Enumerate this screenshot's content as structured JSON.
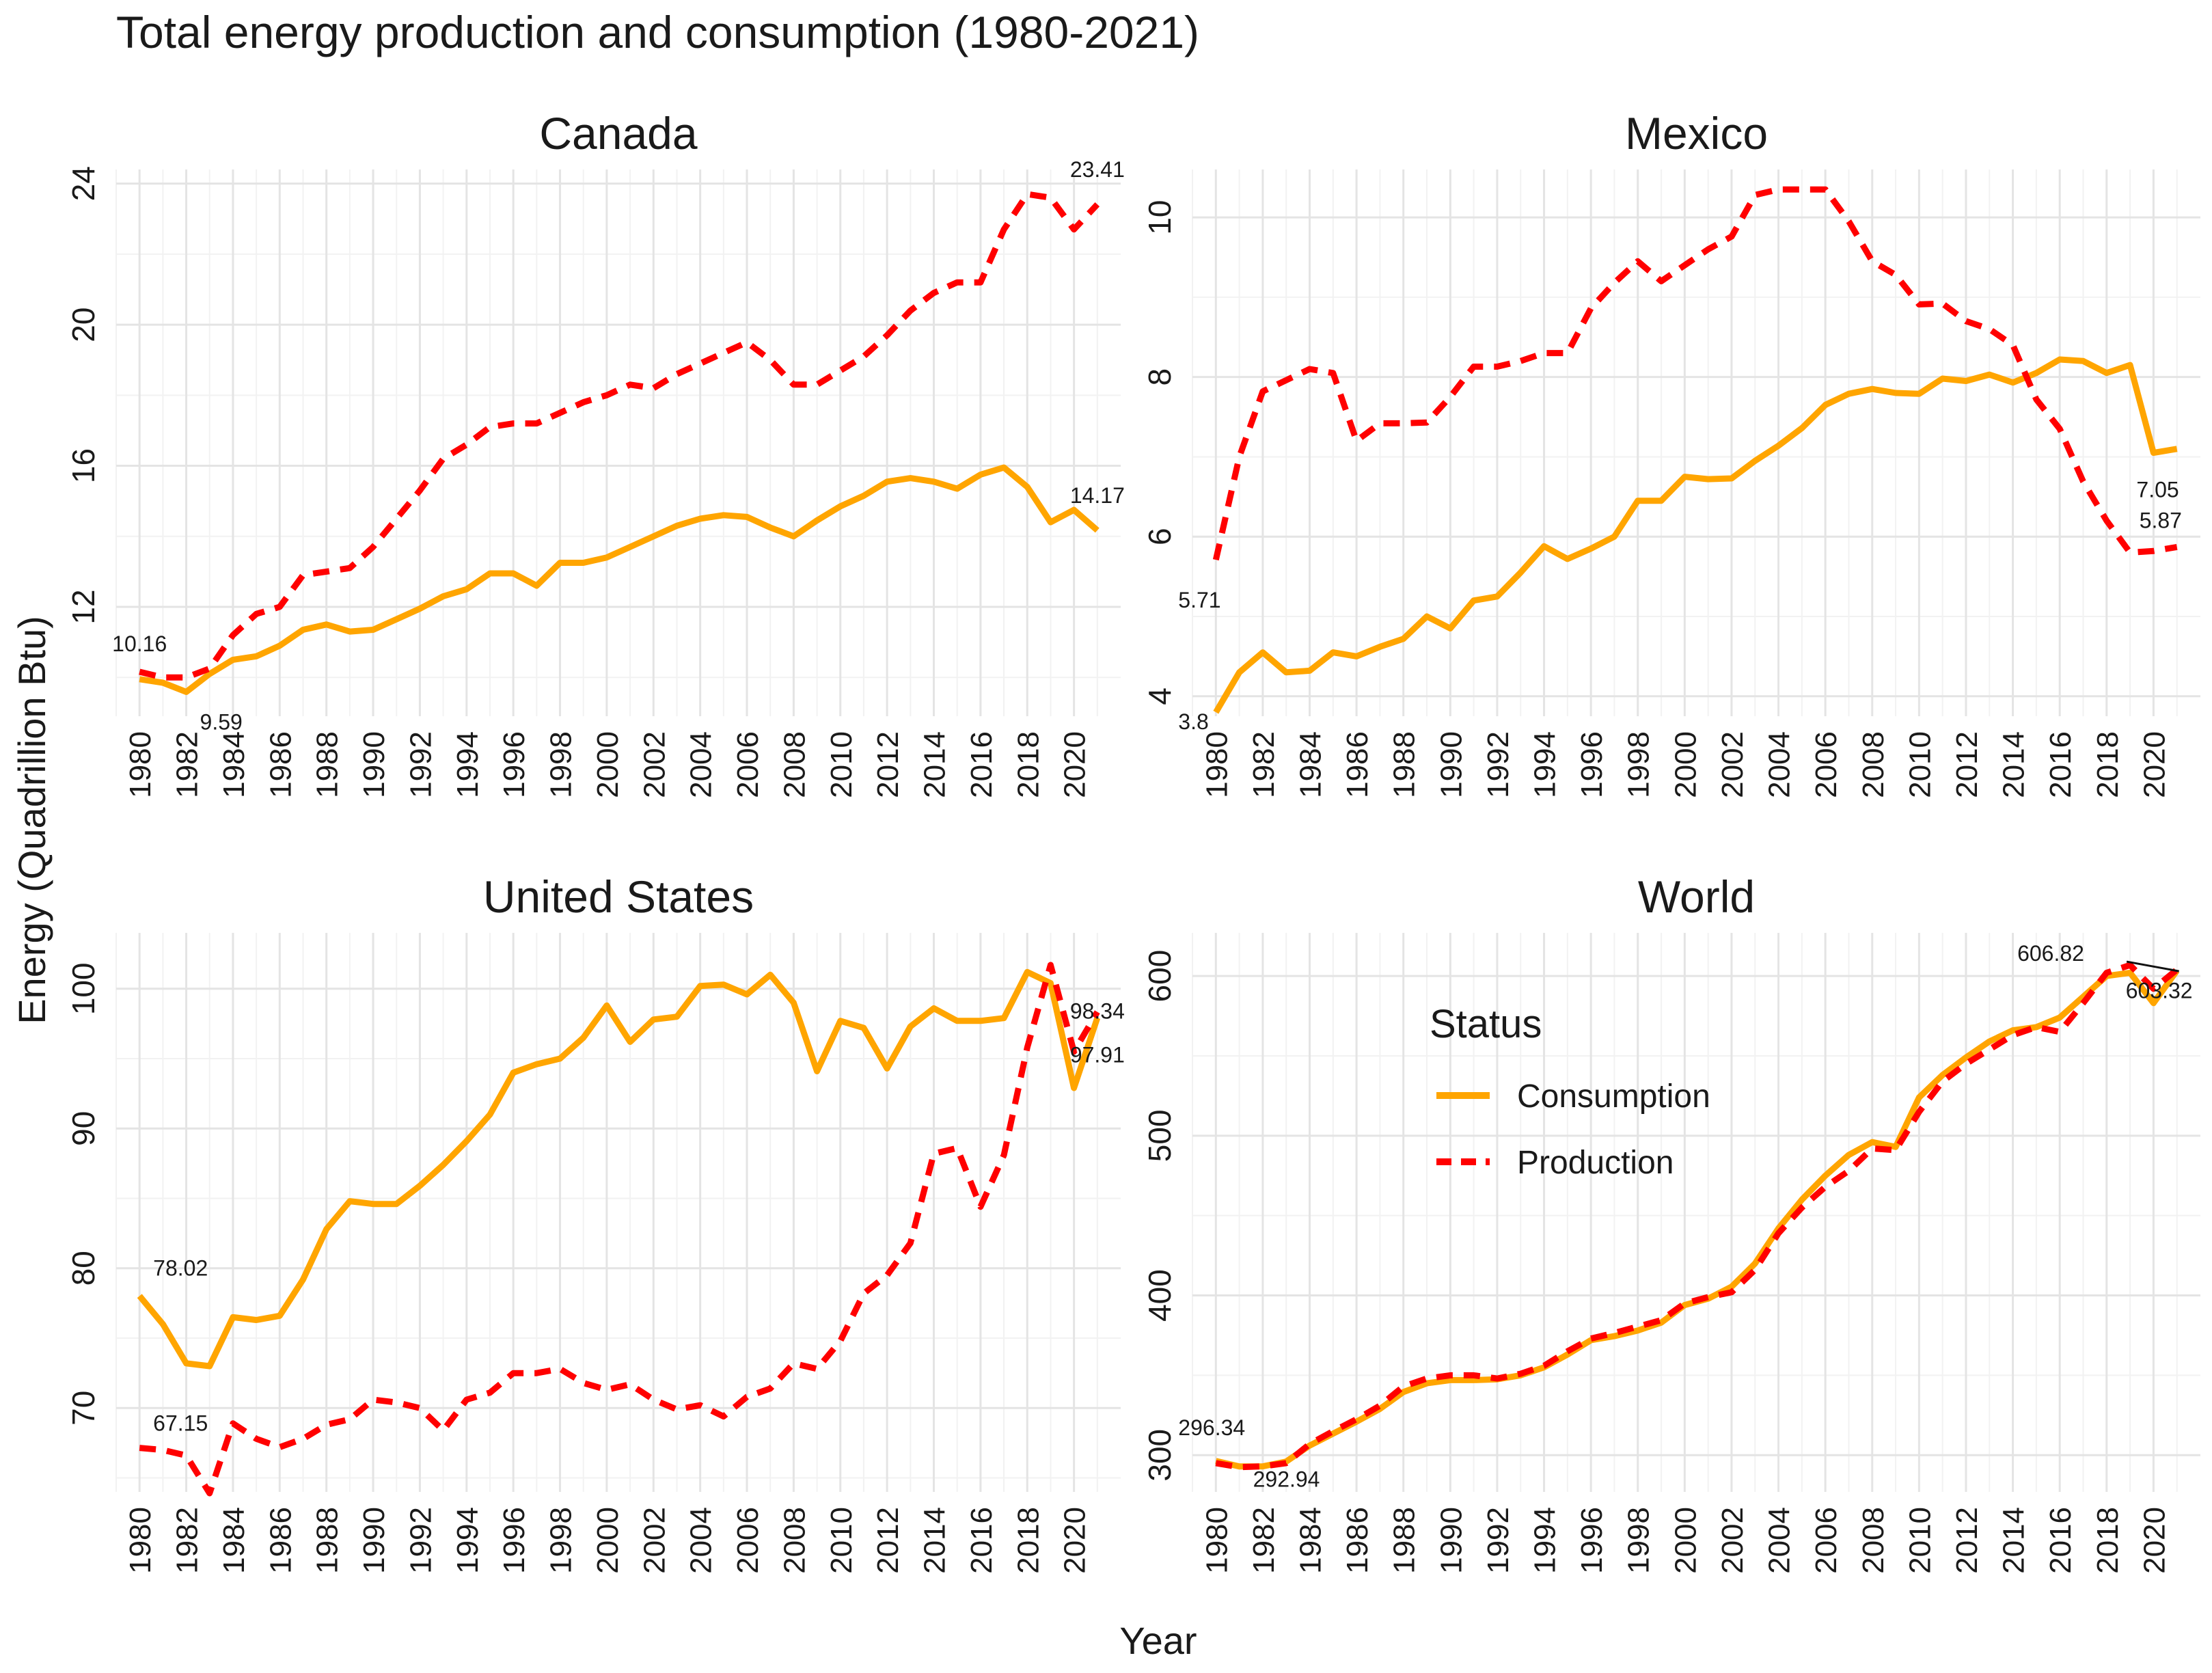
{
  "title": "Total energy production and consumption (1980-2021)",
  "xlabel": "Year",
  "ylabel": "Energy (Quadrillion Btu)",
  "legend": {
    "title": "Status",
    "position": "inside-world-panel-left",
    "items": [
      {
        "name": "Consumption",
        "color": "#FFA500",
        "dash": "solid"
      },
      {
        "name": "Production",
        "color": "#FF0000",
        "dash": "dashed"
      }
    ]
  },
  "chart_data": {
    "type": "line",
    "x_ticks": [
      "1980",
      "1982",
      "1984",
      "1986",
      "1988",
      "1990",
      "1992",
      "1994",
      "1996",
      "1998",
      "2000",
      "2002",
      "2004",
      "2006",
      "2008",
      "2010",
      "2012",
      "2014",
      "2016",
      "2018",
      "2020"
    ],
    "xlim": [
      1979,
      2022
    ],
    "panels": [
      {
        "name": "Canada",
        "ylim": [
          8.9,
          24.4
        ],
        "yticks": [
          12,
          16,
          20,
          24
        ],
        "x": [
          1980,
          1981,
          1982,
          1983,
          1984,
          1985,
          1986,
          1987,
          1988,
          1989,
          1990,
          1991,
          1992,
          1993,
          1994,
          1995,
          1996,
          1997,
          1998,
          1999,
          2000,
          2001,
          2002,
          2003,
          2004,
          2005,
          2006,
          2007,
          2008,
          2009,
          2010,
          2011,
          2012,
          2013,
          2014,
          2015,
          2016,
          2017,
          2018,
          2019,
          2020,
          2021
        ],
        "series": [
          {
            "name": "Consumption",
            "values": [
              9.95,
              9.85,
              9.59,
              10.1,
              10.5,
              10.6,
              10.9,
              11.35,
              11.5,
              11.3,
              11.35,
              11.65,
              11.95,
              12.3,
              12.5,
              12.95,
              12.95,
              12.6,
              13.25,
              13.25,
              13.4,
              13.7,
              14.0,
              14.3,
              14.5,
              14.6,
              14.55,
              14.25,
              14.0,
              14.45,
              14.85,
              15.15,
              15.55,
              15.65,
              15.55,
              15.35,
              15.75,
              15.95,
              15.4,
              14.4,
              14.75,
              14.17
            ]
          },
          {
            "name": "Production",
            "values": [
              10.16,
              10.0,
              10.0,
              10.25,
              11.2,
              11.8,
              12.0,
              12.9,
              13.0,
              13.1,
              13.7,
              14.5,
              15.3,
              16.2,
              16.6,
              17.1,
              17.2,
              17.2,
              17.5,
              17.8,
              18.0,
              18.3,
              18.2,
              18.6,
              18.9,
              19.2,
              19.5,
              19.0,
              18.3,
              18.3,
              18.7,
              19.1,
              19.7,
              20.4,
              20.9,
              21.2,
              21.2,
              22.7,
              23.7,
              23.6,
              22.7,
              23.41
            ]
          }
        ],
        "annotations": [
          {
            "text": "10.16",
            "x": 1980,
            "y": 10.16,
            "series": "Production"
          },
          {
            "text": "9.59",
            "x": 1982,
            "y": 9.59,
            "series": "Consumption"
          },
          {
            "text": "23.41",
            "x": 2021,
            "y": 23.41,
            "series": "Production"
          },
          {
            "text": "14.17",
            "x": 2021,
            "y": 14.17,
            "series": "Consumption"
          }
        ]
      },
      {
        "name": "Mexico",
        "ylim": [
          3.75,
          10.6
        ],
        "yticks": [
          4,
          6,
          8,
          10
        ],
        "x": [
          1980,
          1981,
          1982,
          1983,
          1984,
          1985,
          1986,
          1987,
          1988,
          1989,
          1990,
          1991,
          1992,
          1993,
          1994,
          1995,
          1996,
          1997,
          1998,
          1999,
          2000,
          2001,
          2002,
          2003,
          2004,
          2005,
          2006,
          2007,
          2008,
          2009,
          2010,
          2011,
          2012,
          2013,
          2014,
          2015,
          2016,
          2017,
          2018,
          2019,
          2020,
          2021
        ],
        "series": [
          {
            "name": "Consumption",
            "values": [
              3.8,
              4.3,
              4.55,
              4.3,
              4.32,
              4.55,
              4.5,
              4.62,
              4.72,
              5.0,
              4.85,
              5.2,
              5.25,
              5.55,
              5.88,
              5.72,
              5.85,
              6.0,
              6.45,
              6.45,
              6.75,
              6.72,
              6.73,
              6.95,
              7.14,
              7.36,
              7.65,
              7.79,
              7.85,
              7.8,
              7.79,
              7.98,
              7.95,
              8.03,
              7.93,
              8.05,
              8.22,
              8.2,
              8.05,
              8.15,
              7.05,
              7.1
            ]
          },
          {
            "name": "Production",
            "values": [
              5.71,
              7.0,
              7.82,
              7.96,
              8.1,
              8.05,
              7.2,
              7.42,
              7.42,
              7.43,
              7.75,
              8.13,
              8.13,
              8.2,
              8.3,
              8.3,
              8.86,
              9.18,
              9.45,
              9.2,
              9.4,
              9.6,
              9.76,
              10.28,
              10.35,
              10.35,
              10.35,
              9.95,
              9.45,
              9.28,
              8.91,
              8.92,
              8.7,
              8.6,
              8.4,
              7.72,
              7.35,
              6.69,
              6.2,
              5.8,
              5.82,
              5.87
            ]
          }
        ],
        "annotations": [
          {
            "text": "3.8",
            "x": 1980,
            "y": 3.8,
            "series": "Consumption"
          },
          {
            "text": "5.71",
            "x": 1980,
            "y": 5.71,
            "series": "Production"
          },
          {
            "text": "7.05",
            "x": 2020,
            "y": 7.05,
            "series": "Consumption"
          },
          {
            "text": "5.87",
            "x": 2021,
            "y": 5.87,
            "series": "Production"
          }
        ]
      },
      {
        "name": "United States",
        "ylim": [
          64,
          104
        ],
        "yticks": [
          70,
          80,
          90,
          100
        ],
        "x": [
          1980,
          1981,
          1982,
          1983,
          1984,
          1985,
          1986,
          1987,
          1988,
          1989,
          1990,
          1991,
          1992,
          1993,
          1994,
          1995,
          1996,
          1997,
          1998,
          1999,
          2000,
          2001,
          2002,
          2003,
          2004,
          2005,
          2006,
          2007,
          2008,
          2009,
          2010,
          2011,
          2012,
          2013,
          2014,
          2015,
          2016,
          2017,
          2018,
          2019,
          2020,
          2021
        ],
        "series": [
          {
            "name": "Consumption",
            "values": [
              78.02,
              76.0,
              73.2,
              73.0,
              76.5,
              76.3,
              76.6,
              79.2,
              82.8,
              84.8,
              84.6,
              84.6,
              85.9,
              87.4,
              89.1,
              91.0,
              94.0,
              94.6,
              95.0,
              96.5,
              98.8,
              96.2,
              97.8,
              98.0,
              100.2,
              100.3,
              99.6,
              101.0,
              99.0,
              94.1,
              97.7,
              97.2,
              94.3,
              97.3,
              98.6,
              97.7,
              97.7,
              97.9,
              101.2,
              100.4,
              92.9,
              97.91
            ]
          },
          {
            "name": "Production",
            "values": [
              67.15,
              67.0,
              66.6,
              63.9,
              68.9,
              67.8,
              67.2,
              67.8,
              68.8,
              69.2,
              70.6,
              70.4,
              70.0,
              68.4,
              70.6,
              71.1,
              72.5,
              72.5,
              72.8,
              71.8,
              71.3,
              71.7,
              70.6,
              69.9,
              70.2,
              69.4,
              70.8,
              71.4,
              73.2,
              72.8,
              74.8,
              78.2,
              79.5,
              81.8,
              88.2,
              88.6,
              84.4,
              88.1,
              95.8,
              101.7,
              95.5,
              98.34
            ]
          }
        ],
        "annotations": [
          {
            "text": "78.02",
            "x": 1980,
            "y": 78.02,
            "series": "Consumption"
          },
          {
            "text": "67.15",
            "x": 1980,
            "y": 67.15,
            "series": "Production"
          },
          {
            "text": "98.34",
            "x": 2021,
            "y": 98.34,
            "series": "Production"
          },
          {
            "text": "97.91",
            "x": 2021,
            "y": 97.91,
            "series": "Consumption"
          }
        ]
      },
      {
        "name": "World",
        "ylim": [
          277,
          627
        ],
        "yticks": [
          300,
          400,
          500,
          600
        ],
        "x": [
          1980,
          1981,
          1982,
          1983,
          1984,
          1985,
          1986,
          1987,
          1988,
          1989,
          1990,
          1991,
          1992,
          1993,
          1994,
          1995,
          1996,
          1997,
          1998,
          1999,
          2000,
          2001,
          2002,
          2003,
          2004,
          2005,
          2006,
          2007,
          2008,
          2009,
          2010,
          2011,
          2012,
          2013,
          2014,
          2015,
          2016,
          2017,
          2018,
          2019,
          2020,
          2021
        ],
        "series": [
          {
            "name": "Consumption",
            "values": [
              296.34,
              292.94,
              293.0,
              296.0,
              306.0,
              313.5,
              321.0,
              329.0,
              339.5,
              345.0,
              347.0,
              347.0,
              347.5,
              350.0,
              355.0,
              363.0,
              372.0,
              374.5,
              378.0,
              383.0,
              394.0,
              398.0,
              405.5,
              420.0,
              442.0,
              460.0,
              475.0,
              488.0,
              496.0,
              493.0,
              524.0,
              538.0,
              549.0,
              559.0,
              566.0,
              568.0,
              574.0,
              587.0,
              600.0,
              602.0,
              583.0,
              603.32
            ]
          },
          {
            "name": "Production",
            "values": [
              295.0,
              292.5,
              293.0,
              295.0,
              307.0,
              315.0,
              322.5,
              331.0,
              343.0,
              348.0,
              350.0,
              350.0,
              348.0,
              351.0,
              356.0,
              365.0,
              373.0,
              376.5,
              380.5,
              384.5,
              395.0,
              399.0,
              402.0,
              416.0,
              439.0,
              455.0,
              468.0,
              478.0,
              492.0,
              491.0,
              515.0,
              534.0,
              545.0,
              554.0,
              563.0,
              568.0,
              565.0,
              583.0,
              602.0,
              606.82,
              592.0,
              604.0
            ]
          }
        ],
        "annotations": [
          {
            "text": "296.34",
            "x": 1980,
            "y": 296.34,
            "series": "Consumption"
          },
          {
            "text": "292.94",
            "x": 1981,
            "y": 292.94,
            "series": "Consumption"
          },
          {
            "text": "606.82",
            "x": 2019,
            "y": 606.82,
            "series": "Production"
          },
          {
            "text": "603.32",
            "x": 2021,
            "y": 603.32,
            "series": "Consumption"
          }
        ]
      }
    ]
  }
}
